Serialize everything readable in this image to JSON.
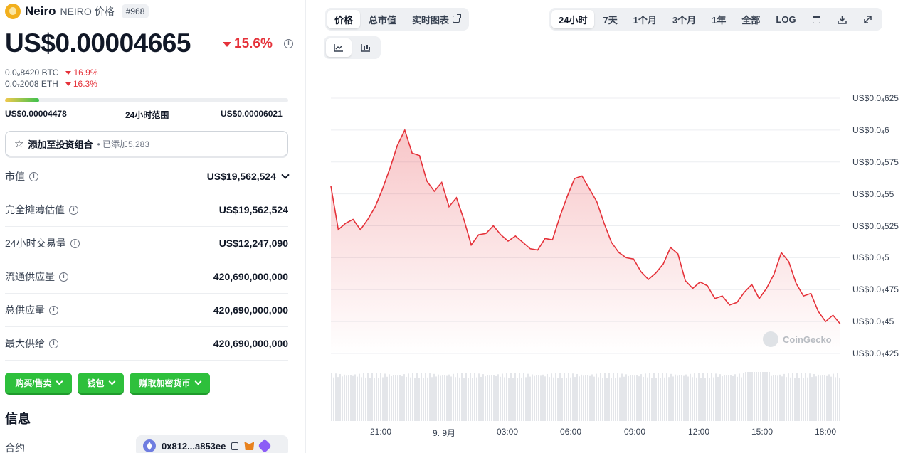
{
  "coin": {
    "name": "Neiro",
    "symbol": "NEIRO 价格",
    "rank": "#968",
    "price": "US$0.00004665",
    "change_24h": "15.6%",
    "btc_price": "0.0₉8420 BTC",
    "btc_change": "16.9%",
    "eth_price": "0.0₇2008 ETH",
    "eth_change": "16.3%",
    "range_low": "US$0.00004478",
    "range_label": "24小时范围",
    "range_high": "US$0.00006021",
    "range_position": 0.12
  },
  "portfolio": {
    "label": "添加至投资组合",
    "added": "• 已添加5,283"
  },
  "stats": [
    {
      "label": "市值",
      "value": "US$19,562,524",
      "dropdown": true
    },
    {
      "label": "完全摊薄估值",
      "value": "US$19,562,524",
      "dropdown": false
    },
    {
      "label": "24小时交易量",
      "value": "US$12,247,090",
      "dropdown": false
    },
    {
      "label": "流通供应量",
      "value": "420,690,000,000",
      "dropdown": false
    },
    {
      "label": "总供应量",
      "value": "420,690,000,000",
      "dropdown": false
    },
    {
      "label": "最大供给",
      "value": "420,690,000,000",
      "dropdown": false
    }
  ],
  "buttons": {
    "buy_sell": "购买/售卖",
    "wallet": "钱包",
    "earn": "赚取加密货币"
  },
  "info": {
    "title": "信息",
    "contract_label": "合约",
    "contract_address": "0x812...a853ee"
  },
  "chart_tabs": [
    {
      "label": "价格",
      "active": true
    },
    {
      "label": "总市值",
      "active": false
    },
    {
      "label": "实时图表",
      "active": false
    }
  ],
  "range_tabs": [
    {
      "label": "24小时",
      "active": true
    },
    {
      "label": "7天",
      "active": false
    },
    {
      "label": "1个月",
      "active": false
    },
    {
      "label": "3个月",
      "active": false
    },
    {
      "label": "1年",
      "active": false
    },
    {
      "label": "全部",
      "active": false
    },
    {
      "label": "LOG",
      "active": false
    }
  ],
  "colors": {
    "accent_red": "#e5323a",
    "accent_green": "#2ec03c"
  },
  "watermark": "CoinGecko",
  "chart_data": {
    "type": "area",
    "title": "",
    "xlabel": "",
    "ylabel": "",
    "x_ticks": [
      "21:00",
      "9. 9月",
      "03:00",
      "06:00",
      "09:00",
      "12:00",
      "15:00",
      "18:00"
    ],
    "y_ticks": [
      "US$0.0₄625",
      "US$0.0₄6",
      "US$0.0₄575",
      "US$0.0₄55",
      "US$0.0₄525",
      "US$0.0₄5",
      "US$0.0₄475",
      "US$0.0₄45",
      "US$0.0₄425"
    ],
    "ylim": [
      4.25e-05,
      6.25e-05
    ],
    "grid": true,
    "series": [
      {
        "values": [
          5.56,
          5.22,
          5.27,
          5.3,
          5.22,
          5.3,
          5.4,
          5.54,
          5.7,
          5.88,
          6.0,
          5.82,
          5.8,
          5.6,
          5.52,
          5.59,
          5.4,
          5.47,
          5.3,
          5.1,
          5.18,
          5.19,
          5.25,
          5.18,
          5.13,
          5.17,
          5.12,
          5.07,
          5.06,
          5.15,
          5.14,
          5.32,
          5.48,
          5.62,
          5.64,
          5.54,
          5.44,
          5.27,
          5.12,
          5.04,
          5.0,
          4.99,
          4.89,
          4.83,
          4.88,
          4.95,
          5.08,
          5.03,
          4.82,
          4.76,
          4.81,
          4.78,
          4.68,
          4.7,
          4.63,
          4.65,
          4.73,
          4.79,
          4.68,
          4.76,
          4.87,
          5.04,
          4.97,
          4.8,
          4.7,
          4.72,
          4.58,
          4.5,
          4.55,
          4.48
        ]
      }
    ]
  }
}
